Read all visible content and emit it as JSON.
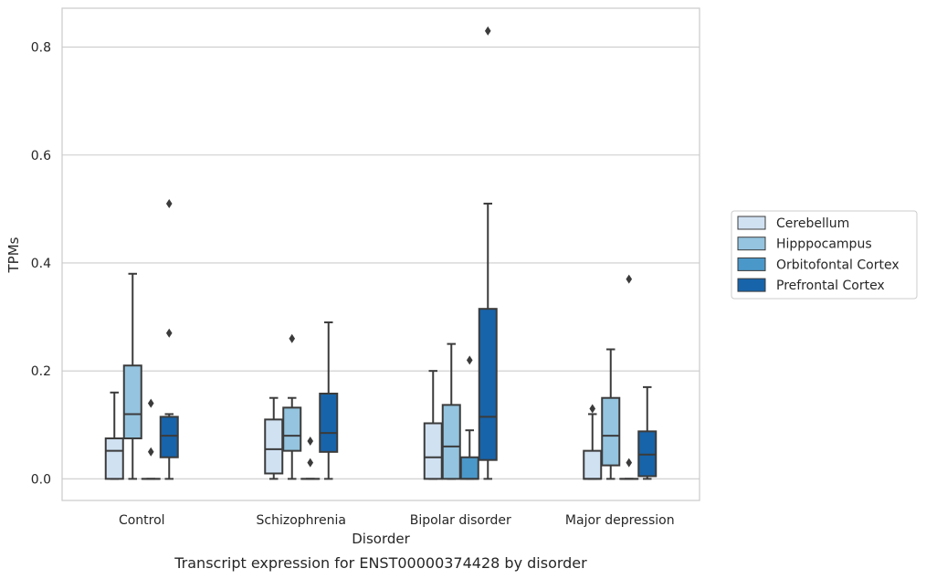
{
  "chart_data": {
    "type": "box",
    "title": "",
    "caption": "Transcript expression for ENST00000374428 by disorder",
    "xlabel": "Disorder",
    "ylabel": "TPMs",
    "ylim": [
      -0.04,
      0.872
    ],
    "yticks": [
      0.0,
      0.2,
      0.4,
      0.6,
      0.8
    ],
    "ytick_labels": [
      "0.0",
      "0.2",
      "0.4",
      "0.6",
      "0.8"
    ],
    "grid": "horizontal",
    "legend_position": "right",
    "categories": [
      "Control",
      "Schizophrenia",
      "Bipolar disorder",
      "Major depression"
    ],
    "series": [
      {
        "name": "Cerebellum",
        "color": "#d0e1f2",
        "boxes": [
          {
            "whislo": 0.0,
            "q1": 0.0,
            "med": 0.052,
            "q3": 0.075,
            "whishi": 0.16,
            "fliers": []
          },
          {
            "whislo": 0.0,
            "q1": 0.01,
            "med": 0.055,
            "q3": 0.11,
            "whishi": 0.15,
            "fliers": []
          },
          {
            "whislo": 0.0,
            "q1": 0.0,
            "med": 0.04,
            "q3": 0.103,
            "whishi": 0.2,
            "fliers": []
          },
          {
            "whislo": 0.0,
            "q1": 0.0,
            "med": 0.0,
            "q3": 0.052,
            "whishi": 0.12,
            "fliers": [
              0.13
            ]
          }
        ]
      },
      {
        "name": "Hipppocampus",
        "color": "#94c4df",
        "boxes": [
          {
            "whislo": 0.0,
            "q1": 0.075,
            "med": 0.12,
            "q3": 0.21,
            "whishi": 0.38,
            "fliers": []
          },
          {
            "whislo": 0.0,
            "q1": 0.052,
            "med": 0.08,
            "q3": 0.132,
            "whishi": 0.15,
            "fliers": [
              0.26
            ]
          },
          {
            "whislo": 0.0,
            "q1": 0.0,
            "med": 0.06,
            "q3": 0.137,
            "whishi": 0.25,
            "fliers": []
          },
          {
            "whislo": 0.0,
            "q1": 0.025,
            "med": 0.08,
            "q3": 0.15,
            "whishi": 0.24,
            "fliers": []
          }
        ]
      },
      {
        "name": "Orbitofontal Cortex",
        "color": "#4a98c9",
        "boxes": [
          {
            "whislo": 0.0,
            "q1": 0.0,
            "med": 0.0,
            "q3": 0.0,
            "whishi": 0.0,
            "fliers": [
              0.05,
              0.14
            ]
          },
          {
            "whislo": 0.0,
            "q1": 0.0,
            "med": 0.0,
            "q3": 0.0,
            "whishi": 0.0,
            "fliers": [
              0.03,
              0.07
            ]
          },
          {
            "whislo": 0.0,
            "q1": 0.0,
            "med": 0.0,
            "q3": 0.04,
            "whishi": 0.09,
            "fliers": [
              0.22
            ]
          },
          {
            "whislo": 0.0,
            "q1": 0.0,
            "med": 0.0,
            "q3": 0.0,
            "whishi": 0.0,
            "fliers": [
              0.03,
              0.37
            ]
          }
        ]
      },
      {
        "name": "Prefrontal Cortex",
        "color": "#1764ab",
        "boxes": [
          {
            "whislo": 0.0,
            "q1": 0.04,
            "med": 0.08,
            "q3": 0.115,
            "whishi": 0.12,
            "fliers": [
              0.27,
              0.51
            ]
          },
          {
            "whislo": 0.0,
            "q1": 0.05,
            "med": 0.085,
            "q3": 0.158,
            "whishi": 0.29,
            "fliers": []
          },
          {
            "whislo": 0.0,
            "q1": 0.035,
            "med": 0.115,
            "q3": 0.315,
            "whishi": 0.51,
            "fliers": [
              0.83
            ]
          },
          {
            "whislo": 0.0,
            "q1": 0.005,
            "med": 0.045,
            "q3": 0.088,
            "whishi": 0.17,
            "fliers": []
          }
        ]
      }
    ]
  }
}
